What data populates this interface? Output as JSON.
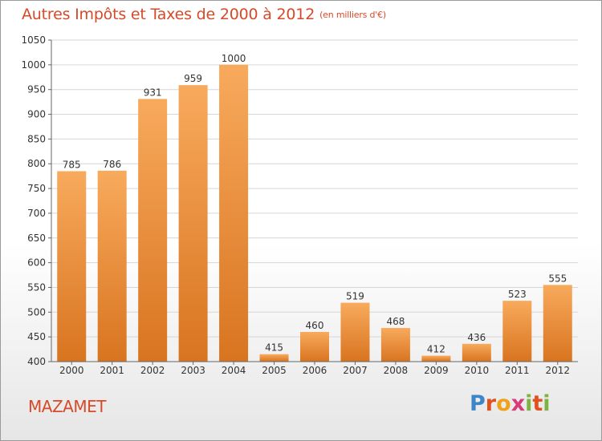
{
  "header": {
    "title": "Autres Impôts et Taxes de 2000 à 2012",
    "unit": "(en milliers d'€)"
  },
  "footer": {
    "town": "MAZAMET",
    "logo_text": "Proxiti"
  },
  "colors": {
    "title": "#d64a2a",
    "bar_top": "#f8a85a",
    "bar_bottom": "#d97420"
  },
  "chart_data": {
    "type": "bar",
    "title": "Autres Impôts et Taxes de 2000 à 2012",
    "subtitle": "(en milliers d'€)",
    "xlabel": "",
    "ylabel": "",
    "categories": [
      "2000",
      "2001",
      "2002",
      "2003",
      "2004",
      "2005",
      "2006",
      "2007",
      "2008",
      "2009",
      "2010",
      "2011",
      "2012"
    ],
    "values": [
      785,
      786,
      931,
      959,
      1000,
      415,
      460,
      519,
      468,
      412,
      436,
      523,
      555
    ],
    "data_labels": [
      "785",
      "786",
      "931",
      "959",
      "1000",
      "415",
      "460",
      "519",
      "468",
      "412",
      "436",
      "523",
      "555"
    ],
    "ylim": [
      400,
      1050
    ],
    "yticks": [
      400,
      450,
      500,
      550,
      600,
      650,
      700,
      750,
      800,
      850,
      900,
      950,
      1000,
      1050
    ],
    "grid": true
  }
}
